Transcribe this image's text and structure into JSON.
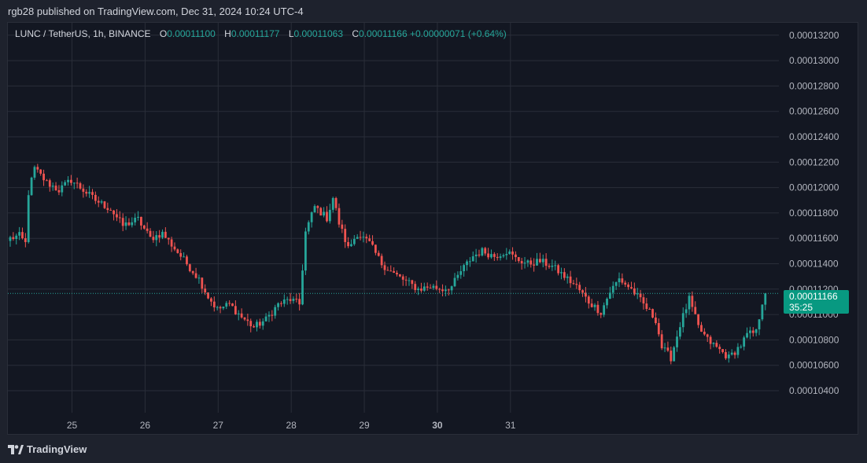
{
  "header": {
    "published_by": "rgb28 published on TradingView.com, Dec 31, 2024 10:24 UTC-4"
  },
  "legend": {
    "symbol": "LUNC / TetherUS, 1h, BINANCE",
    "open_label": "O",
    "open": "0.00011100",
    "high_label": "H",
    "high": "0.00011177",
    "low_label": "L",
    "low": "0.00011063",
    "close_label": "C",
    "close": "0.00011166",
    "change": "+0.00000071 (+0.64%)"
  },
  "price_tag": {
    "price": "0.00011166",
    "countdown": "35:25"
  },
  "footer": {
    "brand": "TradingView",
    "logo_icon": "tradingview-logo-icon"
  },
  "colors": {
    "up": "#26a69a",
    "down": "#ef5350",
    "background": "#131722",
    "grid": "#2a2e39",
    "text": "#d1d4dc"
  },
  "chart_data": {
    "type": "candlestick",
    "title": "LUNC / TetherUS, 1h, BINANCE",
    "interval": "1h",
    "grid": true,
    "y_axis": {
      "position": "right",
      "range": [
        0.0001026,
        0.0001335
      ],
      "ticks": [
        "0.00010400",
        "0.00010600",
        "0.00010800",
        "0.00011000",
        "0.00011200",
        "0.00011400",
        "0.00011600",
        "0.00011800",
        "0.00012000",
        "0.00012200",
        "0.00012400",
        "0.00012600",
        "0.00012800",
        "0.00013000",
        "0.00013200"
      ]
    },
    "x_axis": {
      "ticks": [
        {
          "label": "25",
          "bold": false
        },
        {
          "label": "26",
          "bold": false
        },
        {
          "label": "27",
          "bold": false
        },
        {
          "label": "28",
          "bold": false
        },
        {
          "label": "29",
          "bold": false
        },
        {
          "label": "30",
          "bold": true
        },
        {
          "label": "31",
          "bold": false
        }
      ]
    },
    "last_price": 0.00011166,
    "anchors": [
      [
        0,
        0.000116
      ],
      [
        3,
        0.0001162
      ],
      [
        5,
        0.0001156
      ],
      [
        6,
        0.0001196
      ],
      [
        8,
        0.0001215
      ],
      [
        12,
        0.0001204
      ],
      [
        16,
        0.0001198
      ],
      [
        20,
        0.0001206
      ],
      [
        24,
        0.0001198
      ],
      [
        28,
        0.000119
      ],
      [
        33,
        0.0001183
      ],
      [
        37,
        0.000117
      ],
      [
        42,
        0.0001175
      ],
      [
        46,
        0.000116
      ],
      [
        50,
        0.0001164
      ],
      [
        54,
        0.0001152
      ],
      [
        58,
        0.000114
      ],
      [
        62,
        0.0001128
      ],
      [
        65,
        0.0001114
      ],
      [
        68,
        0.0001104
      ],
      [
        72,
        0.0001108
      ],
      [
        76,
        0.0001098
      ],
      [
        80,
        0.000109
      ],
      [
        84,
        0.0001096
      ],
      [
        88,
        0.0001108
      ],
      [
        92,
        0.0001112
      ],
      [
        95,
        0.0001108
      ],
      [
        97,
        0.0001165
      ],
      [
        100,
        0.0001185
      ],
      [
        104,
        0.0001176
      ],
      [
        106,
        0.0001192
      ],
      [
        108,
        0.0001172
      ],
      [
        111,
        0.0001152
      ],
      [
        114,
        0.0001164
      ],
      [
        118,
        0.0001156
      ],
      [
        122,
        0.000114
      ],
      [
        126,
        0.0001132
      ],
      [
        130,
        0.0001126
      ],
      [
        134,
        0.000112
      ],
      [
        138,
        0.0001122
      ],
      [
        142,
        0.000112
      ],
      [
        145,
        0.0001122
      ],
      [
        148,
        0.0001134
      ],
      [
        152,
        0.0001146
      ],
      [
        155,
        0.000115
      ],
      [
        159,
        0.0001146
      ],
      [
        163,
        0.000115
      ],
      [
        166,
        0.0001144
      ],
      [
        170,
        0.000114
      ],
      [
        174,
        0.0001142
      ],
      [
        178,
        0.0001138
      ],
      [
        182,
        0.000113
      ],
      [
        186,
        0.0001122
      ],
      [
        190,
        0.000111
      ],
      [
        194,
        0.0001102
      ],
      [
        197,
        0.0001118
      ],
      [
        200,
        0.0001128
      ],
      [
        204,
        0.000112
      ],
      [
        208,
        0.0001108
      ],
      [
        212,
        0.0001096
      ],
      [
        214,
        0.0001074
      ],
      [
        217,
        0.0001066
      ],
      [
        220,
        0.0001092
      ],
      [
        223,
        0.0001112
      ],
      [
        226,
        0.000109
      ],
      [
        229,
        0.000108
      ],
      [
        232,
        0.0001074
      ],
      [
        236,
        0.0001066
      ],
      [
        240,
        0.0001076
      ],
      [
        242,
        0.0001084
      ],
      [
        245,
        0.0001086
      ],
      [
        247,
        0.000111
      ],
      [
        248,
        0.0001117
      ]
    ]
  }
}
